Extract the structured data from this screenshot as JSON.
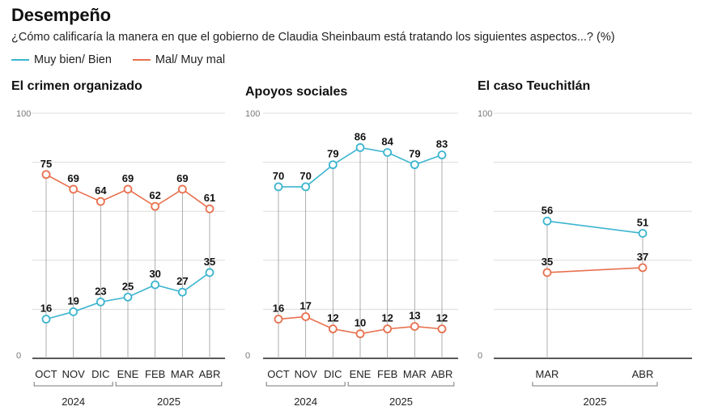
{
  "header": {
    "title": "Desempeño",
    "subtitle": "¿Cómo calificaría la manera en que el gobierno de Claudia Sheinbaum está tratando los siguientes aspectos...? (%)"
  },
  "legend": [
    {
      "label": "Muy bien/ Bien",
      "color": "#3cb4cf"
    },
    {
      "label": "Mal/ Muy mal",
      "color": "#e8704e"
    }
  ],
  "chart_data": [
    {
      "type": "line",
      "title": "El crimen organizado",
      "categories": [
        "OCT",
        "NOV",
        "DIC",
        "ENE",
        "FEB",
        "MAR",
        "ABR"
      ],
      "year_groups": [
        {
          "label": "2024",
          "start": 0,
          "end": 2
        },
        {
          "label": "2025",
          "start": 3,
          "end": 6
        }
      ],
      "ylim": [
        0,
        100
      ],
      "yticks": [
        0,
        100
      ],
      "series": [
        {
          "name": "Muy bien/ Bien",
          "color": "#3cb4cf",
          "values": [
            16,
            19,
            23,
            25,
            30,
            27,
            35
          ]
        },
        {
          "name": "Mal/ Muy mal",
          "color": "#e8704e",
          "values": [
            75,
            69,
            64,
            69,
            62,
            69,
            61
          ]
        }
      ]
    },
    {
      "type": "line",
      "title": "Apoyos sociales",
      "categories": [
        "OCT",
        "NOV",
        "DIC",
        "ENE",
        "FEB",
        "MAR",
        "ABR"
      ],
      "year_groups": [
        {
          "label": "2024",
          "start": 0,
          "end": 2
        },
        {
          "label": "2025",
          "start": 3,
          "end": 6
        }
      ],
      "ylim": [
        0,
        100
      ],
      "yticks": [
        0,
        100
      ],
      "series": [
        {
          "name": "Muy bien/ Bien",
          "color": "#3cb4cf",
          "values": [
            70,
            70,
            79,
            86,
            84,
            79,
            83
          ]
        },
        {
          "name": "Mal/ Muy mal",
          "color": "#e8704e",
          "values": [
            16,
            17,
            12,
            10,
            12,
            13,
            12
          ]
        }
      ]
    },
    {
      "type": "line",
      "title": "El caso Teuchitlán",
      "categories": [
        "MAR",
        "ABR"
      ],
      "year_groups": [
        {
          "label": "2025",
          "start": 0,
          "end": 1
        }
      ],
      "ylim": [
        0,
        100
      ],
      "yticks": [
        0,
        100
      ],
      "series": [
        {
          "name": "Muy bien/ Bien",
          "color": "#3cb4cf",
          "values": [
            56,
            51
          ]
        },
        {
          "name": "Mal/ Muy mal",
          "color": "#e8704e",
          "values": [
            35,
            37
          ]
        }
      ]
    }
  ]
}
